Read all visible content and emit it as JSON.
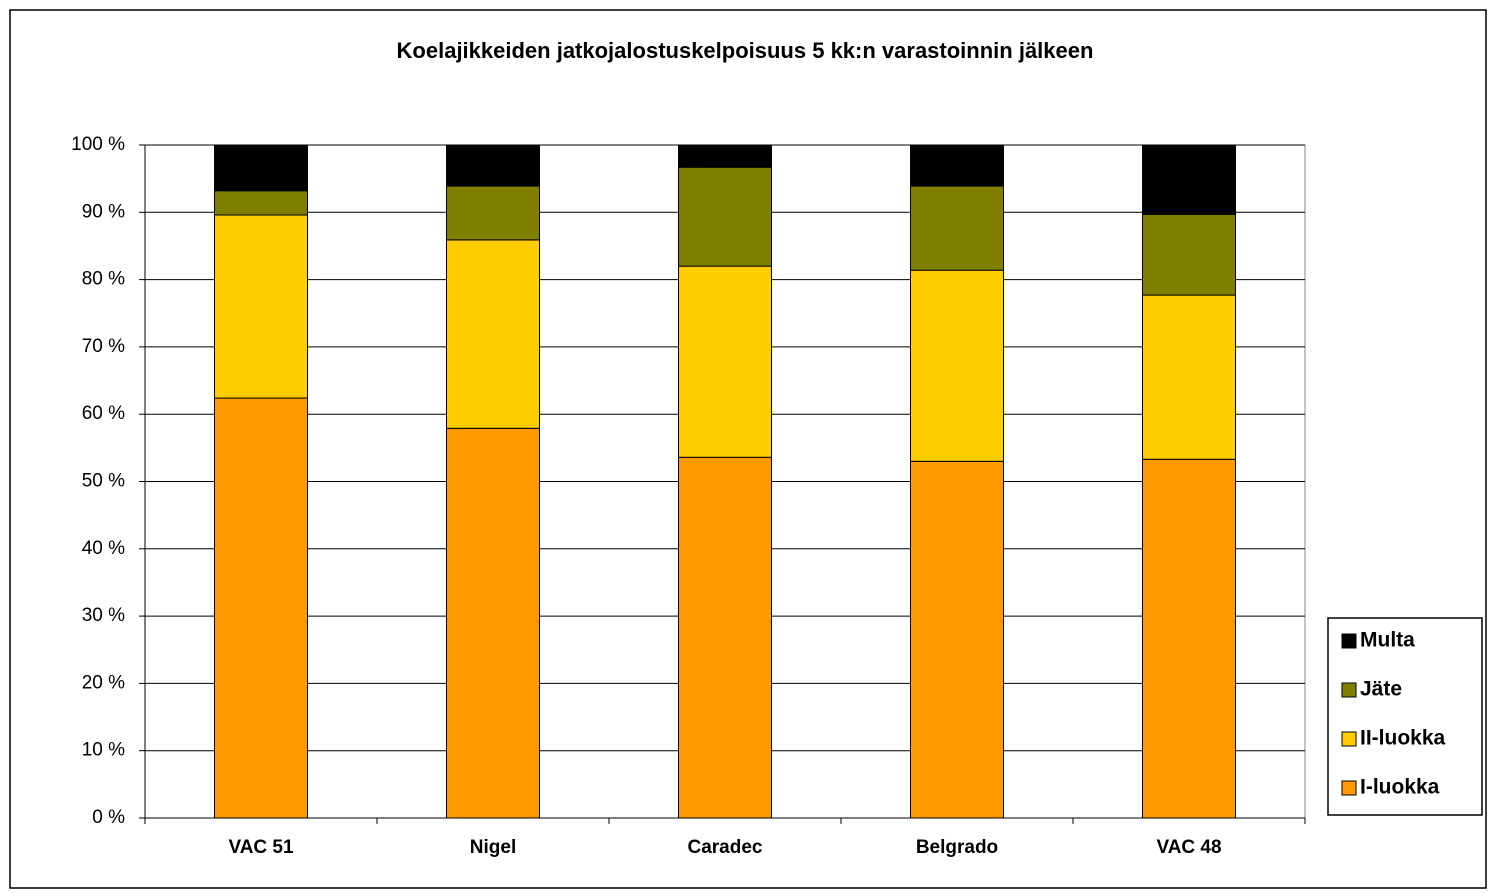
{
  "chart_data": {
    "type": "stacked_bar",
    "title": "Koelajikkeiden  jatkojalostuskelpoisuus  5 kk:n  varastoinnin  jälkeen",
    "categories": [
      "VAC 51",
      "Nigel",
      "Caradec",
      "Belgrado",
      "VAC 48"
    ],
    "series": [
      {
        "name": "I-luokka",
        "color": "#ff9900",
        "values": [
          62.4,
          57.9,
          53.6,
          53.0,
          53.3
        ]
      },
      {
        "name": "II-luokka",
        "color": "#ffcc00",
        "values": [
          27.2,
          28.0,
          28.4,
          28.4,
          24.4
        ]
      },
      {
        "name": "Jäte",
        "color": "#808000",
        "values": [
          3.6,
          8.0,
          14.7,
          12.5,
          12.0
        ]
      },
      {
        "name": "Multa",
        "color": "#000000",
        "values": [
          6.8,
          6.1,
          3.3,
          6.1,
          10.3
        ]
      }
    ],
    "ylim": [
      0,
      100
    ],
    "yticks": [
      {
        "value": 0,
        "label": "0 %"
      },
      {
        "value": 10,
        "label": "10 %"
      },
      {
        "value": 20,
        "label": "20 %"
      },
      {
        "value": 30,
        "label": "30 %"
      },
      {
        "value": 40,
        "label": "40 %"
      },
      {
        "value": 50,
        "label": "50 %"
      },
      {
        "value": 60,
        "label": "60 %"
      },
      {
        "value": 70,
        "label": "70 %"
      },
      {
        "value": 80,
        "label": "80 %"
      },
      {
        "value": 90,
        "label": "90 %"
      },
      {
        "value": 100,
        "label": "100 %"
      }
    ],
    "grid": true,
    "legend": "right"
  }
}
